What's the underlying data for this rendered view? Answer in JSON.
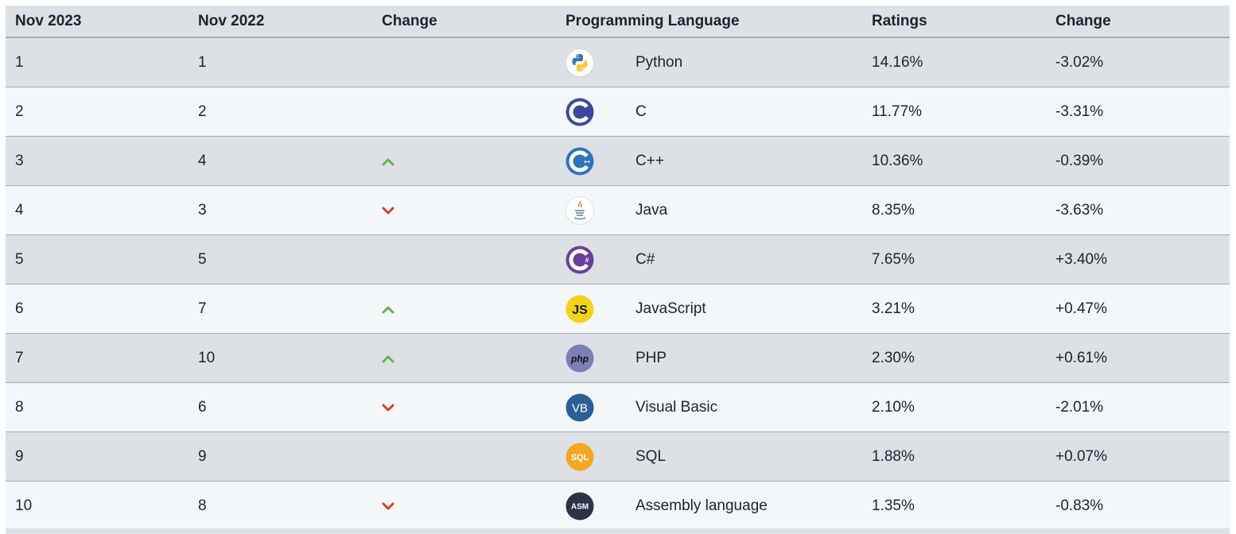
{
  "headers": {
    "rank_current": "Nov 2023",
    "rank_previous": "Nov 2022",
    "change": "Change",
    "language": "Programming Language",
    "ratings": "Ratings",
    "rating_change": "Change"
  },
  "rows": [
    {
      "rank_current": "1",
      "rank_previous": "1",
      "trend": "none",
      "icon": "python-icon",
      "language": "Python",
      "ratings": "14.16%",
      "rating_change": "-3.02%"
    },
    {
      "rank_current": "2",
      "rank_previous": "2",
      "trend": "none",
      "icon": "c-icon",
      "language": "C",
      "ratings": "11.77%",
      "rating_change": "-3.31%"
    },
    {
      "rank_current": "3",
      "rank_previous": "4",
      "trend": "up",
      "icon": "cpp-icon",
      "language": "C++",
      "ratings": "10.36%",
      "rating_change": "-0.39%"
    },
    {
      "rank_current": "4",
      "rank_previous": "3",
      "trend": "down",
      "icon": "java-icon",
      "language": "Java",
      "ratings": "8.35%",
      "rating_change": "-3.63%"
    },
    {
      "rank_current": "5",
      "rank_previous": "5",
      "trend": "none",
      "icon": "csharp-icon",
      "language": "C#",
      "ratings": "7.65%",
      "rating_change": "+3.40%"
    },
    {
      "rank_current": "6",
      "rank_previous": "7",
      "trend": "up",
      "icon": "javascript-icon",
      "language": "JavaScript",
      "ratings": "3.21%",
      "rating_change": "+0.47%"
    },
    {
      "rank_current": "7",
      "rank_previous": "10",
      "trend": "up",
      "icon": "php-icon",
      "language": "PHP",
      "ratings": "2.30%",
      "rating_change": "+0.61%"
    },
    {
      "rank_current": "8",
      "rank_previous": "6",
      "trend": "down",
      "icon": "visual-basic-icon",
      "language": "Visual Basic",
      "ratings": "2.10%",
      "rating_change": "-2.01%"
    },
    {
      "rank_current": "9",
      "rank_previous": "9",
      "trend": "none",
      "icon": "sql-icon",
      "language": "SQL",
      "ratings": "1.88%",
      "rating_change": "+0.07%"
    },
    {
      "rank_current": "10",
      "rank_previous": "8",
      "trend": "down",
      "icon": "assembly-icon",
      "language": "Assembly language",
      "ratings": "1.35%",
      "rating_change": "-0.83%"
    }
  ],
  "icon_text": {
    "javascript": "JS",
    "php": "php",
    "visual_basic": "VB",
    "sql": "SQL",
    "assembly": "ASM"
  },
  "colors": {
    "trend_up": "#6ab04c",
    "trend_down": "#d9401e",
    "row_odd": "#dde1e5",
    "row_even": "#f3f7fa"
  }
}
